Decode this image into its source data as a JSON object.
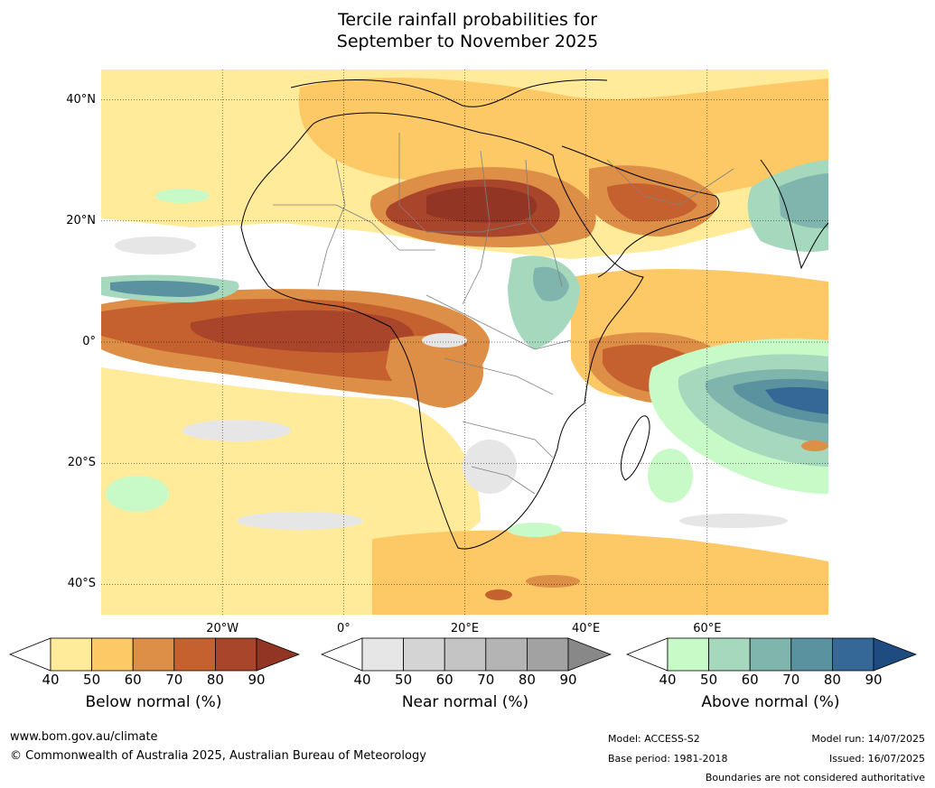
{
  "title": {
    "line1": "Tercile rainfall probabilities for",
    "line2": "September to November 2025"
  },
  "map": {
    "lat_labels": [
      "40°N",
      "20°N",
      "0°",
      "20°S",
      "40°S"
    ],
    "lon_labels": [
      "20°W",
      "0°",
      "20°E",
      "40°E",
      "60°E"
    ],
    "lat_values": [
      40,
      20,
      0,
      -20,
      -40
    ],
    "lon_values": [
      -20,
      0,
      20,
      40,
      60
    ],
    "extent": {
      "lon": [
        -40,
        80
      ],
      "lat": [
        -45,
        45
      ]
    }
  },
  "colorbars": [
    {
      "name": "below",
      "label": "Below normal (%)",
      "ticks": [
        "40",
        "50",
        "60",
        "70",
        "80",
        "90"
      ],
      "colors": [
        "#ffeb99",
        "#fdc967",
        "#dd8e47",
        "#c4612f",
        "#a8452a",
        "#923524"
      ]
    },
    {
      "name": "near",
      "label": "Near normal (%)",
      "ticks": [
        "40",
        "50",
        "60",
        "70",
        "80",
        "90"
      ],
      "colors": [
        "#e6e6e6",
        "#d4d4d4",
        "#c4c4c4",
        "#b4b4b4",
        "#a2a2a2",
        "#888888"
      ]
    },
    {
      "name": "above",
      "label": "Above normal (%)",
      "ticks": [
        "40",
        "50",
        "60",
        "70",
        "80",
        "90"
      ],
      "colors": [
        "#c8fac8",
        "#a5d8bd",
        "#7fb5ad",
        "#5b929f",
        "#356897",
        "#1e4c80"
      ]
    }
  ],
  "footer": {
    "url": "www.bom.gov.au/climate",
    "copyright": "© Commonwealth of Australia 2025, Australian Bureau of Meteorology",
    "model": "Model: ACCESS-S2",
    "base_period": "Base period: 1981-2018",
    "model_run": "Model run: 14/07/2025",
    "issued": "Issued: 16/07/2025",
    "disclaimer": "Boundaries are not considered authoritative"
  }
}
